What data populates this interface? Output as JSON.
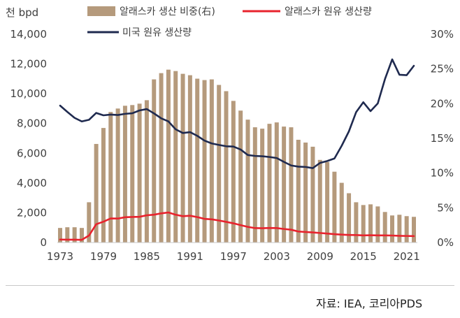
{
  "chart_data": {
    "type": "bar+line",
    "y_unit": "천 bpd",
    "x_ticks": [
      "1973",
      "1979",
      "1985",
      "1991",
      "1997",
      "2003",
      "2009",
      "2015",
      "2021"
    ],
    "y_left": {
      "min": 0,
      "max": 14000,
      "ticks": [
        "0",
        "2,000",
        "4,000",
        "6,000",
        "8,000",
        "10,000",
        "12,000",
        "14,000"
      ]
    },
    "y_right": {
      "min": 0,
      "max": 30,
      "unit": "%",
      "ticks": [
        "0%",
        "5%",
        "10%",
        "15%",
        "20%",
        "25%",
        "30%"
      ]
    },
    "years": [
      1973,
      1974,
      1975,
      1976,
      1977,
      1978,
      1979,
      1980,
      1981,
      1982,
      1983,
      1984,
      1985,
      1986,
      1987,
      1988,
      1989,
      1990,
      1991,
      1992,
      1993,
      1994,
      1995,
      1996,
      1997,
      1998,
      1999,
      2000,
      2001,
      2002,
      2003,
      2004,
      2005,
      2006,
      2007,
      2008,
      2009,
      2010,
      2011,
      2012,
      2013,
      2014,
      2015,
      2016,
      2017,
      2018,
      2019,
      2020,
      2021,
      2022
    ],
    "series": [
      {
        "name": "알래스카 생산 비중(右)",
        "kind": "bar",
        "axis": "right",
        "color": "#b59a7c",
        "values": [
          2.1,
          2.2,
          2.2,
          2.1,
          5.8,
          14.2,
          16.5,
          18.8,
          19.3,
          19.7,
          19.8,
          20.0,
          20.5,
          23.5,
          24.4,
          24.9,
          24.7,
          24.3,
          24.1,
          23.6,
          23.4,
          23.5,
          22.7,
          21.8,
          20.4,
          19.0,
          17.7,
          16.6,
          16.4,
          17.1,
          17.3,
          16.7,
          16.6,
          14.8,
          14.4,
          13.8,
          11.9,
          11.6,
          10.2,
          8.6,
          7.1,
          5.8,
          5.4,
          5.5,
          5.2,
          4.4,
          3.9,
          4.0,
          3.8,
          3.7
        ]
      },
      {
        "name": "알래스카 원유 생산량",
        "kind": "line",
        "axis": "left",
        "color": "#e8232d",
        "values": [
          200,
          190,
          190,
          180,
          470,
          1230,
          1400,
          1620,
          1610,
          1700,
          1720,
          1730,
          1830,
          1870,
          1960,
          2020,
          1870,
          1770,
          1800,
          1710,
          1590,
          1560,
          1480,
          1390,
          1290,
          1170,
          1050,
          970,
          960,
          980,
          970,
          910,
          860,
          740,
          710,
          680,
          640,
          600,
          560,
          530,
          510,
          500,
          480,
          490,
          480,
          480,
          470,
          450,
          440,
          430
        ]
      },
      {
        "name": "미국 원유 생산량",
        "kind": "line",
        "axis": "left",
        "color": "#1f2a4f",
        "values": [
          9200,
          8780,
          8380,
          8140,
          8250,
          8710,
          8550,
          8600,
          8570,
          8650,
          8690,
          8880,
          8970,
          8680,
          8350,
          8140,
          7610,
          7360,
          7420,
          7170,
          6850,
          6660,
          6560,
          6470,
          6450,
          6250,
          5880,
          5820,
          5800,
          5750,
          5680,
          5420,
          5180,
          5100,
          5080,
          5000,
          5350,
          5480,
          5650,
          6500,
          7470,
          8760,
          9430,
          8830,
          9350,
          10990,
          12310,
          11280,
          11250,
          11880
        ]
      }
    ]
  },
  "source": "자료: IEA, 코리아PDS"
}
